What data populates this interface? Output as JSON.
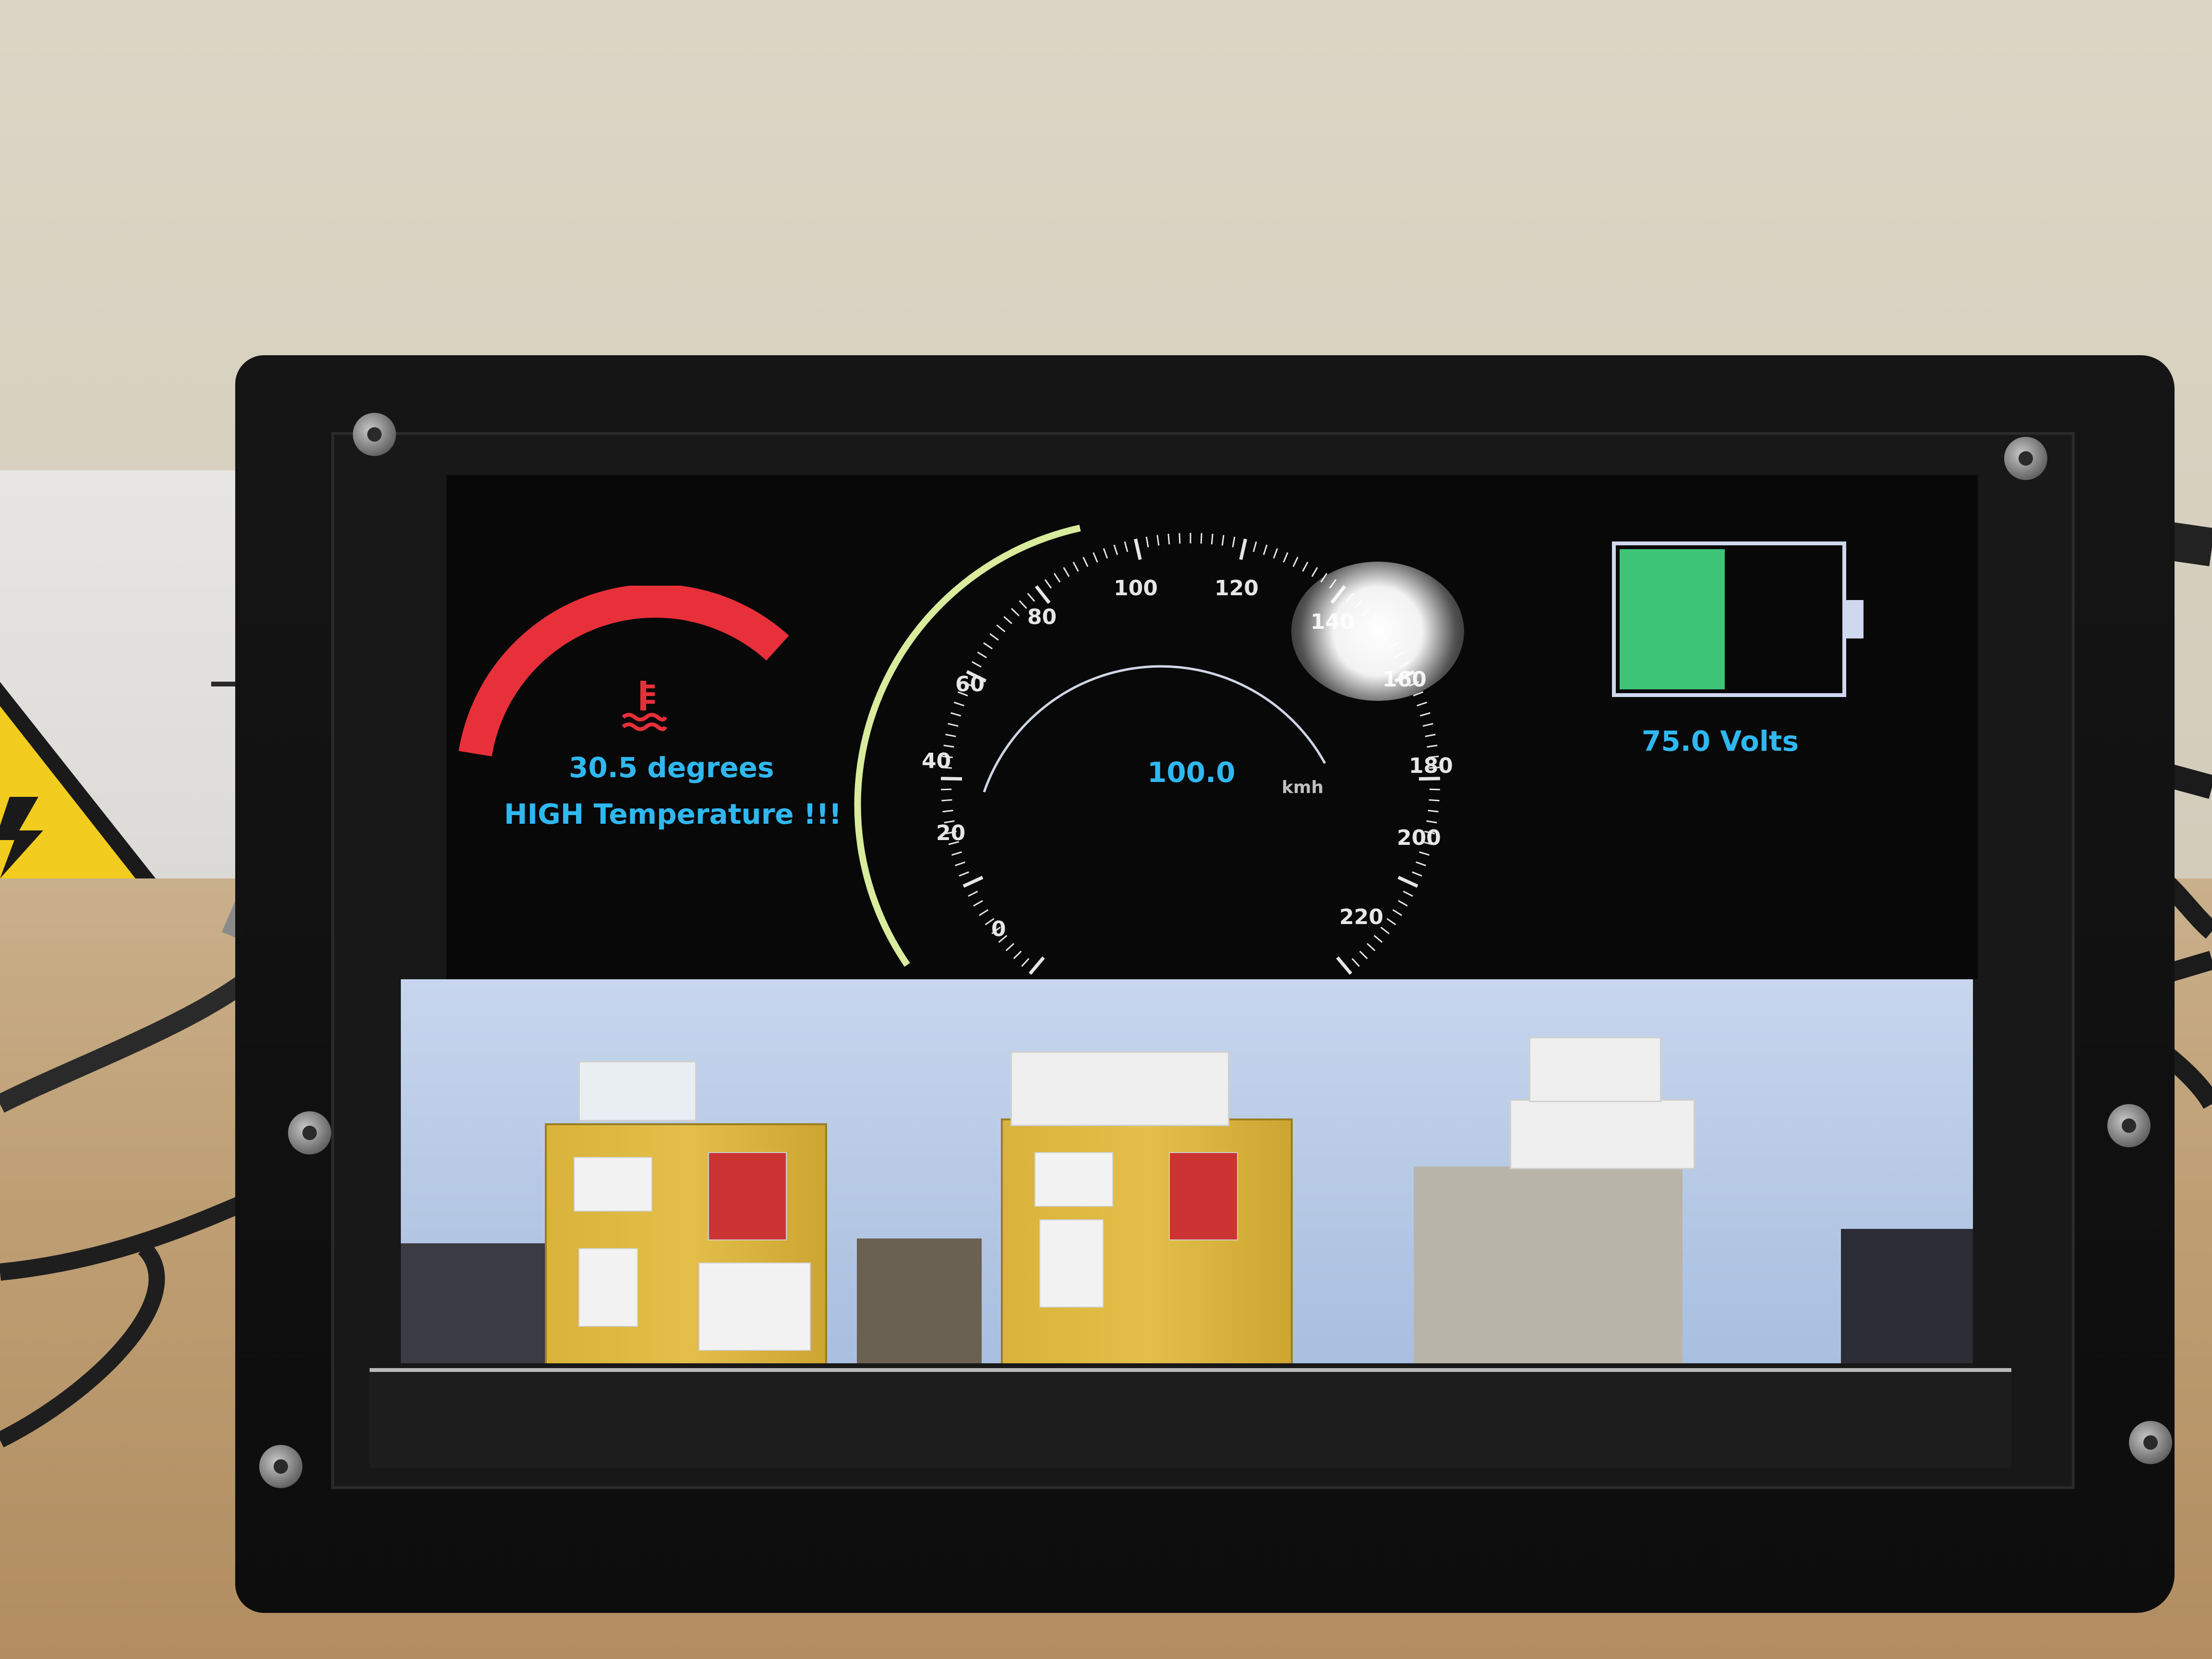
{
  "dashboard": {
    "temperature": {
      "value_label": "30.5 degrees",
      "warning_label": "HIGH Temperature !!!",
      "gauge_color": "#e8303a",
      "icon": "coolant-temperature-icon"
    },
    "speedometer": {
      "value_label": "100.0",
      "unit_label": "kmh",
      "speed": 100.0,
      "max": 220,
      "tick_labels": [
        "0",
        "20",
        "40",
        "60",
        "80",
        "100",
        "120",
        "140",
        "160",
        "180",
        "200",
        "220"
      ],
      "arc_color": "#d9eb9c"
    },
    "battery": {
      "voltage_label": "75.0 Volts",
      "fill_fraction": 0.48,
      "fill_color": "#3cc477",
      "frame_color": "#d0d8f0"
    },
    "text_color": "#2fb8f0"
  },
  "camera_feed": {
    "icon": "camera-feed-image"
  }
}
